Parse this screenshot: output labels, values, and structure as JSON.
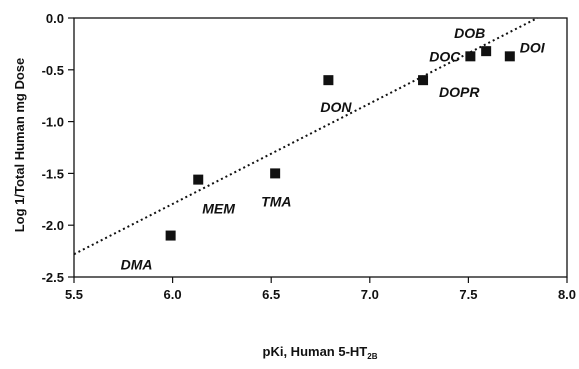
{
  "chart_data": {
    "type": "scatter",
    "xlabel": "pKi, Human 5-HT",
    "xlabel_sub": "2B",
    "ylabel": "Log 1/Total Human mg Dose",
    "xlim": [
      5.5,
      8.0
    ],
    "ylim": [
      -2.5,
      0.0
    ],
    "x_ticks": [
      "5.5",
      "6.0",
      "6.5",
      "7.0",
      "7.5",
      "8.0"
    ],
    "y_ticks": [
      "0.0",
      "-0.5",
      "-1.0",
      "-1.5",
      "-2.0",
      "-2.5"
    ],
    "grid": false,
    "points": [
      {
        "label": "DMA",
        "x": 5.99,
        "y": -2.1
      },
      {
        "label": "MEM",
        "x": 6.13,
        "y": -1.56
      },
      {
        "label": "TMA",
        "x": 6.52,
        "y": -1.5
      },
      {
        "label": "DON",
        "x": 6.79,
        "y": -0.6
      },
      {
        "label": "DOPR",
        "x": 7.27,
        "y": -0.6
      },
      {
        "label": "DOC",
        "x": 7.51,
        "y": -0.37
      },
      {
        "label": "DOB",
        "x": 7.59,
        "y": -0.32
      },
      {
        "label": "DOI",
        "x": 7.71,
        "y": -0.37
      }
    ],
    "trendline": {
      "style": "dotted",
      "x": [
        5.5,
        7.85
      ],
      "y": [
        -2.28,
        0.0
      ]
    }
  }
}
